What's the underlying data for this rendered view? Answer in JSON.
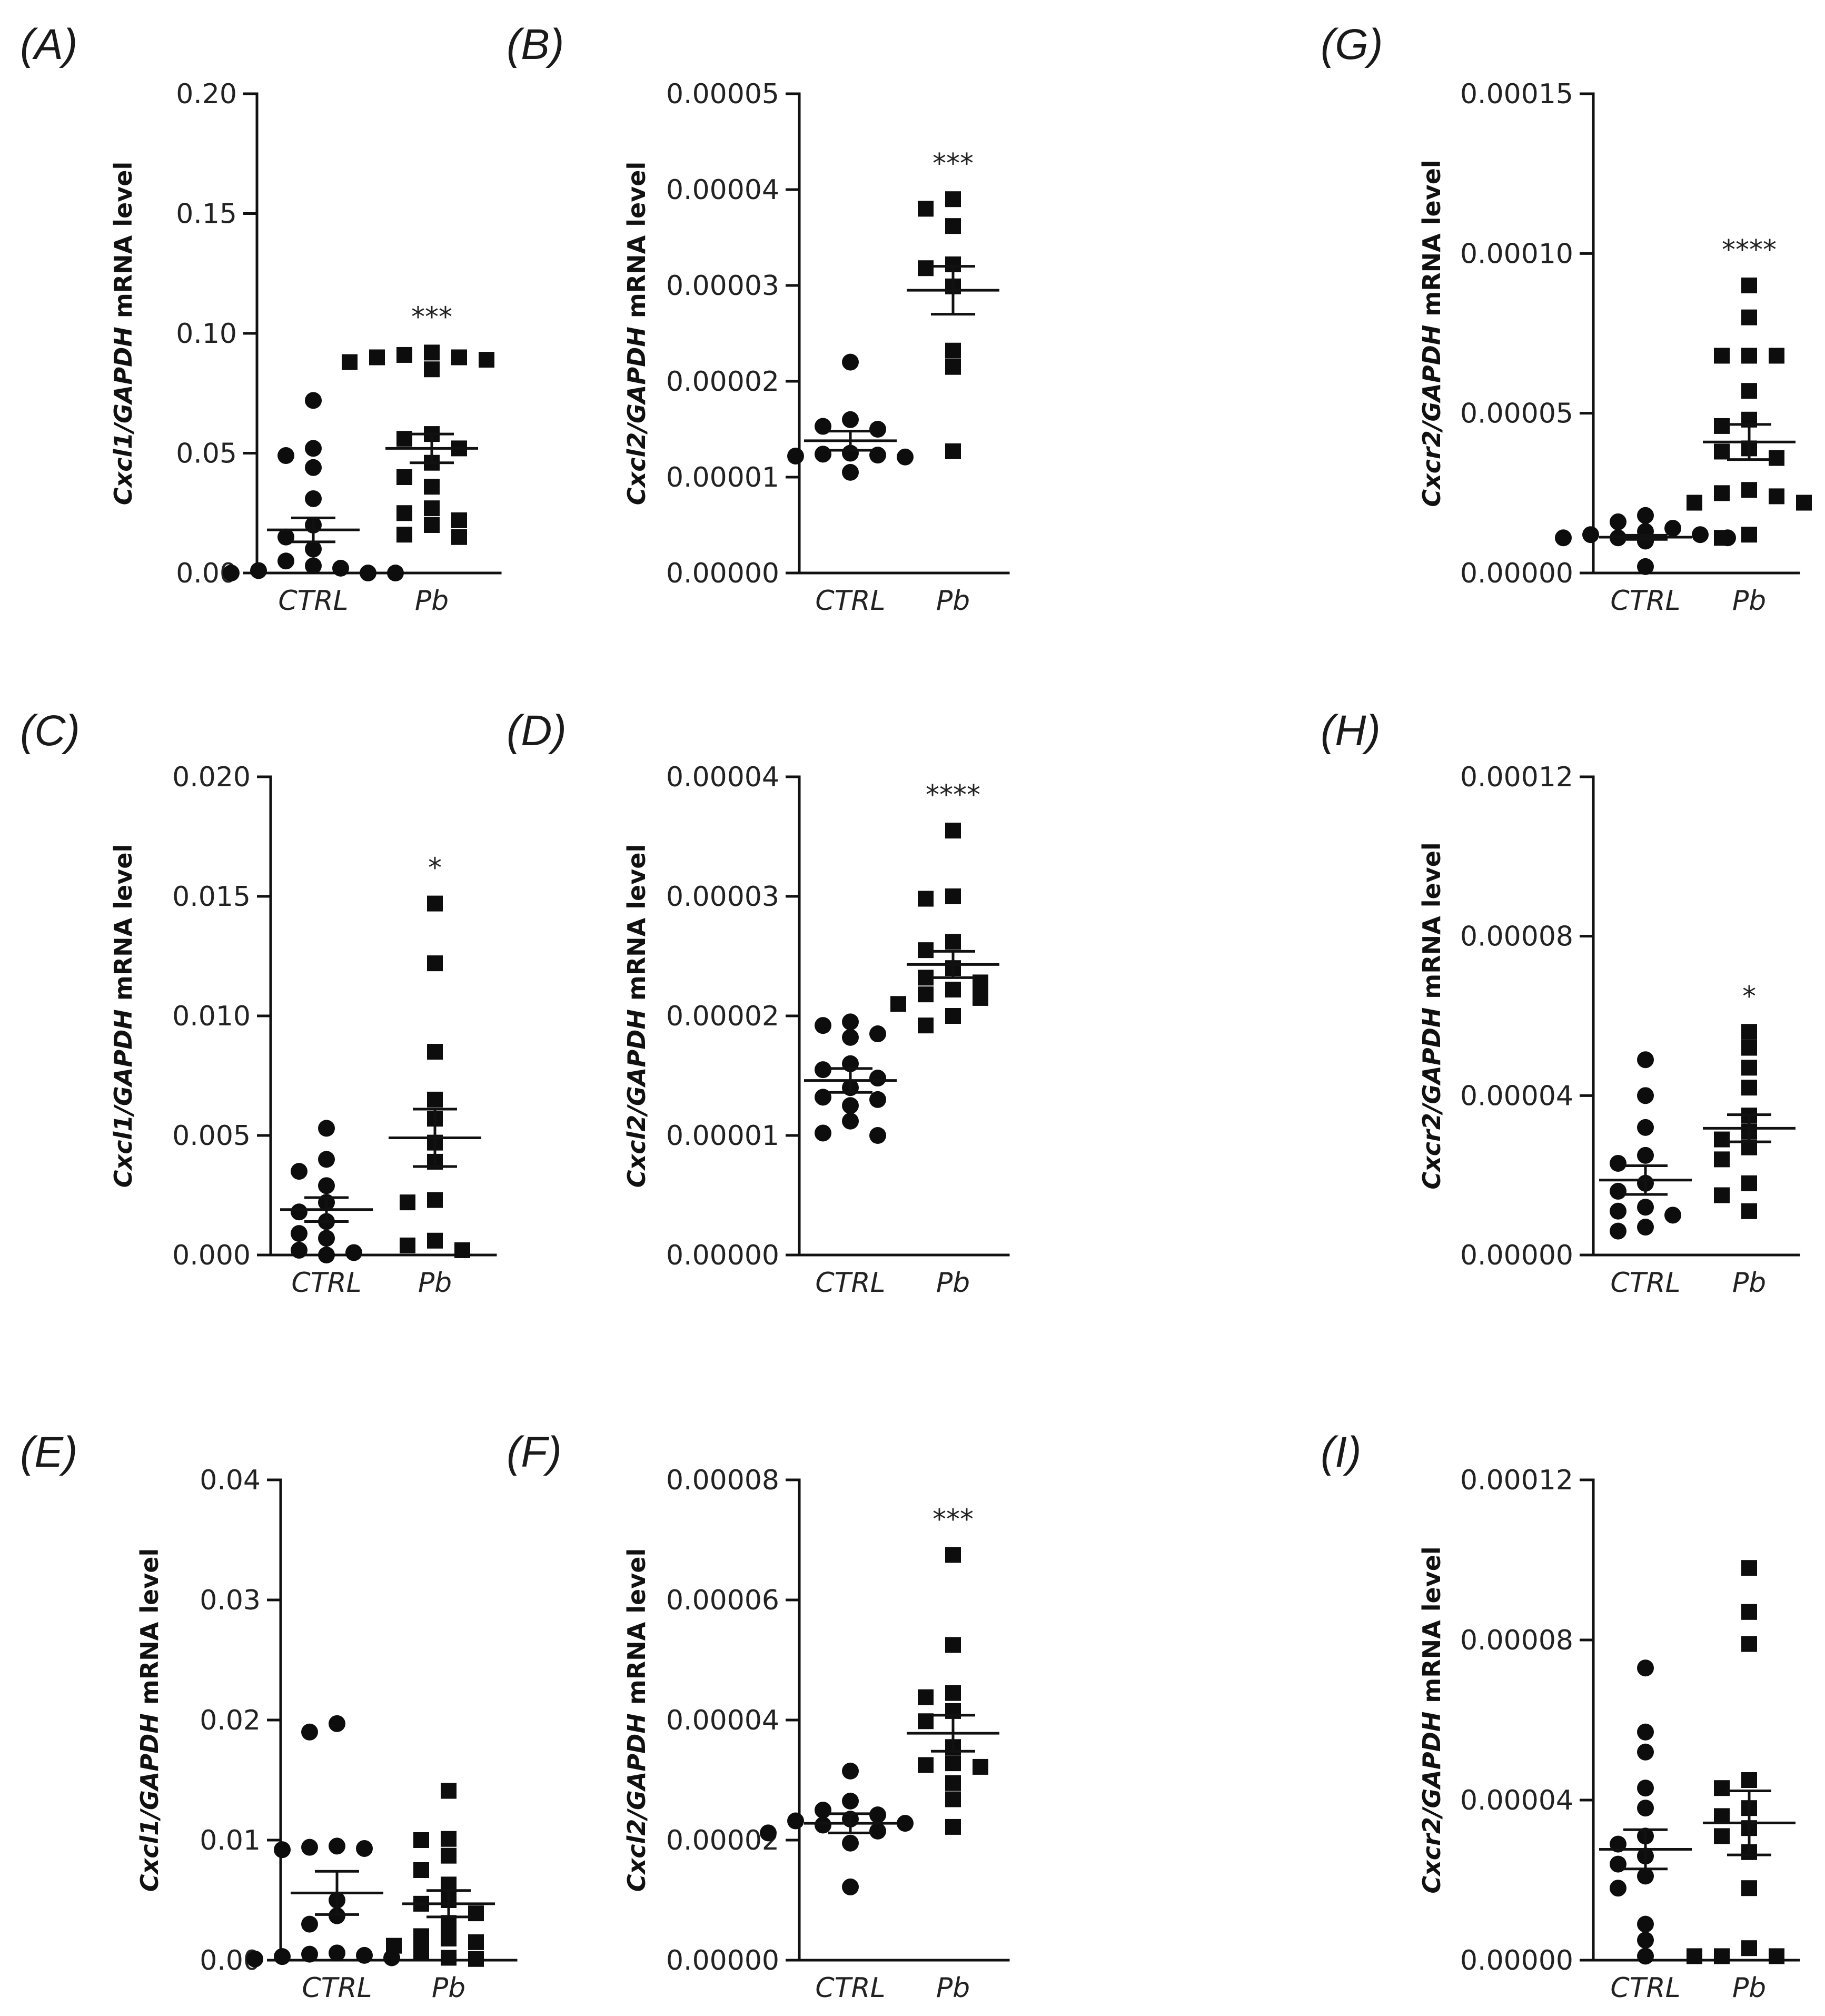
{
  "chart_data": [
    {
      "panel": "(A)",
      "type": "scatter",
      "ylabel_gene": "Cxcl1/GAPDH",
      "ylabel_rest": " mRNA level",
      "yticks": [
        "0.00",
        "0.05",
        "0.10",
        "0.15",
        "0.20"
      ],
      "ylim": [
        0,
        0.2
      ],
      "categories": [
        "CTRL",
        "Pb"
      ],
      "groups": [
        {
          "name": "CTRL",
          "marker": "circle",
          "mean": 0.018,
          "sem_low": 0.013,
          "sem_high": 0.023,
          "values": [
            0.072,
            0.052,
            0.049,
            0.044,
            0.031,
            0.02,
            0.015,
            0.01,
            0.005,
            0.003,
            0.002,
            0.001,
            0.0,
            0.0,
            0.0
          ]
        },
        {
          "name": "Pb",
          "marker": "square",
          "mean": 0.052,
          "sem_low": 0.046,
          "sem_high": 0.058,
          "values": [
            0.092,
            0.091,
            0.09,
            0.09,
            0.089,
            0.088,
            0.085,
            0.058,
            0.056,
            0.052,
            0.046,
            0.04,
            0.036,
            0.027,
            0.025,
            0.022,
            0.02,
            0.016,
            0.015
          ]
        }
      ],
      "significance": "***"
    },
    {
      "panel": "(B)",
      "type": "scatter",
      "ylabel_gene": "Cxcl2/GAPDH",
      "ylabel_rest": " mRNA level",
      "yticks": [
        "0.00000",
        "0.00001",
        "0.00002",
        "0.00003",
        "0.00004",
        "0.00005"
      ],
      "ylim": [
        0,
        5e-05
      ],
      "categories": [
        "CTRL",
        "Pb"
      ],
      "groups": [
        {
          "name": "CTRL",
          "marker": "circle",
          "mean": 1.38e-05,
          "sem_low": 1.28e-05,
          "sem_high": 1.48e-05,
          "values": [
            2.2e-05,
            1.6e-05,
            1.53e-05,
            1.5e-05,
            1.25e-05,
            1.24e-05,
            1.23e-05,
            1.22e-05,
            1.21e-05,
            1.05e-05
          ]
        },
        {
          "name": "Pb",
          "marker": "square",
          "mean": 2.95e-05,
          "sem_low": 2.7e-05,
          "sem_high": 3.2e-05,
          "values": [
            3.9e-05,
            3.8e-05,
            3.62e-05,
            3.22e-05,
            3.18e-05,
            2.99e-05,
            2.32e-05,
            2.15e-05,
            1.27e-05
          ]
        }
      ],
      "significance": "***"
    },
    {
      "panel": "(G)",
      "type": "scatter",
      "ylabel_gene": "Cxcr2/GAPDH",
      "ylabel_rest": " mRNA level",
      "yticks": [
        "0.00000",
        "0.00005",
        "0.00010",
        "0.00015"
      ],
      "ylim": [
        0,
        0.00015
      ],
      "categories": [
        "CTRL",
        "Pb"
      ],
      "groups": [
        {
          "name": "CTRL",
          "marker": "circle",
          "mean": 1.12e-05,
          "sem_low": 1.05e-05,
          "sem_high": 1.18e-05,
          "values": [
            1.8e-05,
            1.6e-05,
            1.4e-05,
            1.3e-05,
            1.2e-05,
            1.2e-05,
            1.1e-05,
            1.1e-05,
            1.1e-05,
            1.1e-05,
            1e-05,
            1e-05,
            2e-06
          ]
        },
        {
          "name": "Pb",
          "marker": "square",
          "mean": 4.1e-05,
          "sem_low": 3.55e-05,
          "sem_high": 4.65e-05,
          "values": [
            9e-05,
            8e-05,
            6.8e-05,
            6.8e-05,
            6.8e-05,
            5.7e-05,
            4.8e-05,
            4.6e-05,
            3.9e-05,
            3.8e-05,
            3.6e-05,
            2.6e-05,
            2.5e-05,
            2.4e-05,
            2.2e-05,
            2.2e-05,
            1.2e-05,
            1.1e-05
          ]
        }
      ],
      "significance": "****"
    },
    {
      "panel": "(C)",
      "type": "scatter",
      "ylabel_gene": "Cxcl1/GAPDH",
      "ylabel_rest": " mRNA level",
      "yticks": [
        "0.000",
        "0.005",
        "0.010",
        "0.015",
        "0.020"
      ],
      "ylim": [
        0,
        0.02
      ],
      "categories": [
        "CTRL",
        "Pb"
      ],
      "groups": [
        {
          "name": "CTRL",
          "marker": "circle",
          "mean": 0.0019,
          "sem_low": 0.0014,
          "sem_high": 0.0024,
          "values": [
            0.0053,
            0.004,
            0.0035,
            0.0029,
            0.0022,
            0.0018,
            0.0014,
            0.0009,
            0.0007,
            0.0002,
            0.0001,
            0.0
          ]
        },
        {
          "name": "Pb",
          "marker": "square",
          "mean": 0.0049,
          "sem_low": 0.0037,
          "sem_high": 0.0061,
          "values": [
            0.0147,
            0.0122,
            0.0085,
            0.0065,
            0.0057,
            0.0047,
            0.0039,
            0.0023,
            0.0022,
            0.0006,
            0.0004,
            0.0002
          ]
        }
      ],
      "significance": "*"
    },
    {
      "panel": "(D)",
      "type": "scatter",
      "ylabel_gene": "Cxcl2/GAPDH",
      "ylabel_rest": " mRNA level",
      "yticks": [
        "0.00000",
        "0.00001",
        "0.00002",
        "0.00003",
        "0.00004"
      ],
      "ylim": [
        0,
        4e-05
      ],
      "categories": [
        "CTRL",
        "Pb"
      ],
      "groups": [
        {
          "name": "CTRL",
          "marker": "circle",
          "mean": 1.46e-05,
          "sem_low": 1.36e-05,
          "sem_high": 1.56e-05,
          "values": [
            1.95e-05,
            1.92e-05,
            1.85e-05,
            1.82e-05,
            1.6e-05,
            1.55e-05,
            1.48e-05,
            1.4e-05,
            1.32e-05,
            1.3e-05,
            1.25e-05,
            1.12e-05,
            1.02e-05,
            1e-05
          ]
        },
        {
          "name": "Pb",
          "marker": "square",
          "mean": 2.43e-05,
          "sem_low": 2.32e-05,
          "sem_high": 2.54e-05,
          "values": [
            3.55e-05,
            3e-05,
            2.98e-05,
            2.62e-05,
            2.55e-05,
            2.4e-05,
            2.32e-05,
            2.28e-05,
            2.22e-05,
            2.18e-05,
            2.15e-05,
            2.1e-05,
            2e-05,
            1.92e-05
          ]
        }
      ],
      "significance": "****"
    },
    {
      "panel": "(H)",
      "type": "scatter",
      "ylabel_gene": "Cxcr2/GAPDH",
      "ylabel_rest": " mRNA level",
      "yticks": [
        "0.00000",
        "0.00004",
        "0.00008",
        "0.00012"
      ],
      "ylim": [
        0,
        0.00012
      ],
      "categories": [
        "CTRL",
        "Pb"
      ],
      "groups": [
        {
          "name": "CTRL",
          "marker": "circle",
          "mean": 1.88e-05,
          "sem_low": 1.52e-05,
          "sem_high": 2.24e-05,
          "values": [
            4.9e-05,
            4e-05,
            3.2e-05,
            2.5e-05,
            2.3e-05,
            1.8e-05,
            1.6e-05,
            1.2e-05,
            1.1e-05,
            1e-05,
            7e-06,
            6e-06
          ]
        },
        {
          "name": "Pb",
          "marker": "square",
          "mean": 3.18e-05,
          "sem_low": 2.84e-05,
          "sem_high": 3.52e-05,
          "values": [
            5.6e-05,
            5.2e-05,
            4.7e-05,
            4.2e-05,
            3.5e-05,
            3.1e-05,
            2.9e-05,
            2.7e-05,
            2.4e-05,
            1.8e-05,
            1.5e-05,
            1.1e-05
          ]
        }
      ],
      "significance": "*"
    },
    {
      "panel": "(E)",
      "type": "scatter",
      "ylabel_gene": "Cxcl1/GAPDH",
      "ylabel_rest": " mRNA level",
      "yticks": [
        "0.00",
        "0.01",
        "0.02",
        "0.03",
        "0.04"
      ],
      "ylim": [
        0,
        0.04
      ],
      "categories": [
        "CTRL",
        "Pb"
      ],
      "groups": [
        {
          "name": "CTRL",
          "marker": "circle",
          "mean": 0.0056,
          "sem_low": 0.0038,
          "sem_high": 0.0074,
          "values": [
            0.0197,
            0.019,
            0.0095,
            0.0094,
            0.0093,
            0.0092,
            0.005,
            0.0037,
            0.003,
            0.0006,
            0.0005,
            0.0004,
            0.0003,
            0.0002,
            0.0001
          ]
        },
        {
          "name": "Pb",
          "marker": "square",
          "mean": 0.0047,
          "sem_low": 0.0036,
          "sem_high": 0.0058,
          "values": [
            0.0141,
            0.0101,
            0.01,
            0.0087,
            0.0075,
            0.0063,
            0.005,
            0.0047,
            0.0039,
            0.0031,
            0.002,
            0.0018,
            0.0015,
            0.0012,
            0.0007,
            0.0002,
            0.0001
          ]
        }
      ],
      "significance": ""
    },
    {
      "panel": "(F)",
      "type": "scatter",
      "ylabel_gene": "Cxcl2/GAPDH",
      "ylabel_rest": " mRNA level",
      "yticks": [
        "0.00000",
        "0.00002",
        "0.00004",
        "0.00006",
        "0.00008"
      ],
      "ylim": [
        0,
        8e-05
      ],
      "categories": [
        "CTRL",
        "Pb"
      ],
      "groups": [
        {
          "name": "CTRL",
          "marker": "circle",
          "mean": 2.28e-05,
          "sem_low": 2.12e-05,
          "sem_high": 2.44e-05,
          "values": [
            3.15e-05,
            2.65e-05,
            2.5e-05,
            2.42e-05,
            2.35e-05,
            2.32e-05,
            2.28e-05,
            2.25e-05,
            2.15e-05,
            2.12e-05,
            1.95e-05,
            1.22e-05
          ]
        },
        {
          "name": "Pb",
          "marker": "square",
          "mean": 3.78e-05,
          "sem_low": 3.48e-05,
          "sem_high": 4.08e-05,
          "values": [
            6.75e-05,
            5.25e-05,
            4.45e-05,
            4.38e-05,
            4.15e-05,
            3.98e-05,
            3.55e-05,
            3.28e-05,
            3.25e-05,
            3.22e-05,
            2.95e-05,
            2.68e-05,
            2.22e-05
          ]
        }
      ],
      "significance": "***"
    },
    {
      "panel": "(I)",
      "type": "scatter",
      "ylabel_gene": "Cxcr2/GAPDH",
      "ylabel_rest": " mRNA level",
      "yticks": [
        "0.00000",
        "0.00004",
        "0.00008",
        "0.00012"
      ],
      "ylim": [
        0,
        0.00012
      ],
      "categories": [
        "CTRL",
        "Pb"
      ],
      "groups": [
        {
          "name": "CTRL",
          "marker": "circle",
          "mean": 2.77e-05,
          "sem_low": 2.28e-05,
          "sem_high": 3.26e-05,
          "values": [
            7.3e-05,
            5.7e-05,
            5.2e-05,
            4.3e-05,
            3.8e-05,
            3.1e-05,
            2.9e-05,
            2.6e-05,
            2.4e-05,
            2.1e-05,
            1.8e-05,
            9e-06,
            5e-06,
            1e-06
          ]
        },
        {
          "name": "Pb",
          "marker": "square",
          "mean": 3.43e-05,
          "sem_low": 2.63e-05,
          "sem_high": 4.23e-05,
          "values": [
            9.8e-05,
            8.7e-05,
            7.9e-05,
            4.5e-05,
            4.3e-05,
            3.8e-05,
            3.6e-05,
            3.3e-05,
            3.1e-05,
            2.7e-05,
            1.8e-05,
            3e-06,
            1e-06,
            1e-06,
            1e-06
          ]
        }
      ],
      "significance": ""
    }
  ]
}
